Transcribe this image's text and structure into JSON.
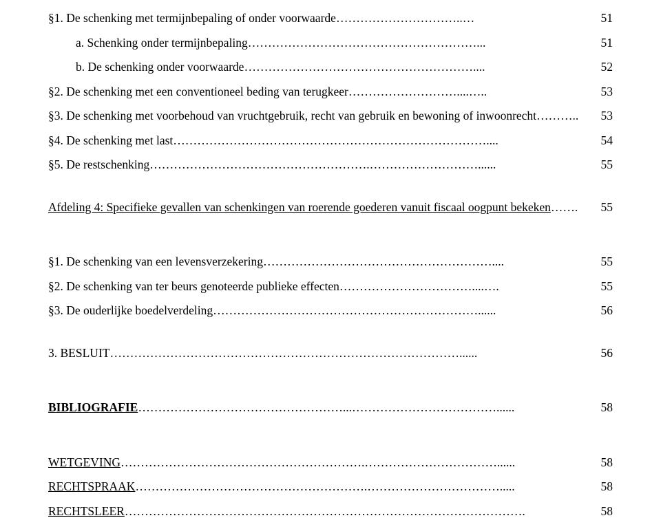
{
  "lines": [
    {
      "indent": 0,
      "label": "§1. De schenking met termijnbepaling of onder voorwaarde",
      "fill": "…………………………..…",
      "page": "51",
      "classes": ""
    },
    {
      "indent": 1,
      "label": "a. Schenking onder termijnbepaling",
      "fill": "…………………………………………………...",
      "page": "51",
      "classes": ""
    },
    {
      "indent": 1,
      "label": "b. De schenking onder voorwaarde",
      "fill": "…………………………………………………....",
      "page": "52",
      "classes": ""
    },
    {
      "indent": 0,
      "label": "§2. De schenking met een conventioneel beding van terugkeer",
      "fill": "………………………....…..",
      "page": "53",
      "classes": ""
    },
    {
      "indent": 0,
      "label": "§3. De schenking met voorbehoud van vruchtgebruik, recht van gebruik en bewoning of inwoonrecht",
      "fill": "………..",
      "page": "53",
      "classes": ""
    },
    {
      "indent": 0,
      "label": "§4. De schenking met last",
      "fill": "……………………………………………………………………....",
      "page": "54",
      "classes": ""
    },
    {
      "indent": 0,
      "label": "§5. De restschenking",
      "fill": "……………………………………………….………………………......",
      "page": "55",
      "classes": ""
    }
  ],
  "section_heading": {
    "label": "Afdeling 4: Specifieke gevallen van schenkingen van roerende goederen vanuit fiscaal oogpunt bekeken",
    "fill": "…….",
    "page": "55"
  },
  "lines2": [
    {
      "indent": 0,
      "label": "§1. De schenking van een levensverzekering",
      "fill": "…………………………………………………....",
      "page": "55",
      "classes": ""
    },
    {
      "indent": 0,
      "label": "§2. De schenking van ter beurs genoteerde publieke effecten",
      "fill": "……………………………....….",
      "page": "55",
      "classes": ""
    },
    {
      "indent": 0,
      "label": "§3. De ouderlijke boedelverdeling",
      "fill": "…………………………………………………………......",
      "page": "56",
      "classes": ""
    }
  ],
  "besluit": {
    "label": "3. BESLUIT",
    "fill": "……………………………………………………………………………......",
    "page": "56"
  },
  "biblio": {
    "label": "BIBLIOGRAFIE",
    "fill": "……………………………………………...………………………………......",
    "page": "58"
  },
  "lines3": [
    {
      "indent": 0,
      "label": "WETGEVING",
      "fill": "…………………………………………………….……………………………......",
      "page": "58",
      "classes": "underline"
    },
    {
      "indent": 0,
      "label": "RECHTSPRAAK",
      "fill": "………………………………………………….…………………………….....",
      "page": "58",
      "classes": "underline"
    },
    {
      "indent": 0,
      "label": "RECHTSLEER",
      "fill": "……………………………………………………………………………………….",
      "page": "58",
      "classes": "underline"
    }
  ]
}
